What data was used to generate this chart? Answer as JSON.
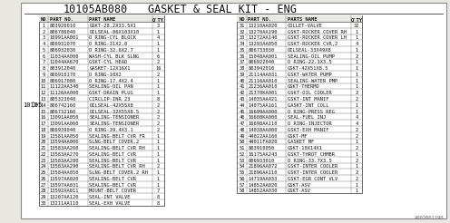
{
  "title_left": "10105AB080",
  "title_right": "GASKET & SEAL KIT - ENG",
  "background_color": "#e8e8e0",
  "table_bg": "#ffffff",
  "label_10105": "10105",
  "watermark": "A002001190",
  "left_table": {
    "headers": [
      "NO",
      "PART NO.",
      "PART NAME",
      "Q'TY"
    ],
    "rows": [
      [
        "1",
        "803926010",
        "GSKT-28.2X33.5X1",
        "3"
      ],
      [
        "2",
        "806786040",
        "OILSEAL-86X103X10",
        "1"
      ],
      [
        "3",
        "10991AA001",
        "O RING-CYL BLOCK",
        "4"
      ],
      [
        "4",
        "806931070",
        "O RING-31X2.0",
        "1"
      ],
      [
        "5",
        "806932030",
        "O RING-32.6X2.7",
        "1"
      ],
      [
        "6",
        "11034AA000",
        "WASH-CYL BLK SLNG",
        "6"
      ],
      [
        "7",
        "11044AA670",
        "GSKT-CYL HEAD",
        "2"
      ],
      [
        "8",
        "803912040",
        "GASKET-12X16X1",
        "16"
      ],
      [
        "9",
        "806910170",
        "O RING-10X2",
        "2"
      ],
      [
        "10",
        "806917080",
        "O RING-17.4X2.4",
        "1"
      ],
      [
        "11",
        "11122AA340",
        "SEALING-OIL PAN",
        "1"
      ],
      [
        "12",
        "11126AA000",
        "GSKT-DRAIN PLUG",
        "1"
      ],
      [
        "13",
        "805323040",
        "CIRCLIP-INR 23",
        "8"
      ],
      [
        "14",
        "806742160",
        "OILSEAL-42X55X8",
        "2"
      ],
      [
        "15",
        "806732160",
        "OILSEAL-32X55X8.5",
        "2"
      ],
      [
        "16",
        "13091AA050",
        "SEALING-TENSIONER",
        "2"
      ],
      [
        "17",
        "13091AA060",
        "SEALING-TENSIONER",
        "2"
      ],
      [
        "18",
        "806939040",
        "O RING-39.4X3.1",
        "2"
      ],
      [
        "19",
        "13581AA050",
        "SEALING-BELT CVR FR",
        "1"
      ],
      [
        "20",
        "13594AA000",
        "SLNG-BELT COVER.2",
        "1"
      ],
      [
        "21",
        "13583AA260",
        "SEALING-BELT CVR RH",
        "1"
      ],
      [
        "22",
        "13583AA270",
        "SEALING-BELT CVR",
        "1"
      ],
      [
        "23",
        "13583AA280",
        "SEALING-BELT CVR",
        "1"
      ],
      [
        "24",
        "13583AA290",
        "SEALING-BELT CVR RH",
        "2"
      ],
      [
        "25",
        "13584AA050",
        "SLNG-BELT COVER.2 RH",
        "1"
      ],
      [
        "26",
        "13597AA020",
        "SEALING-BELT CVR",
        "1"
      ],
      [
        "27",
        "13597AA031",
        "SEALING-BELT CVR",
        "1"
      ],
      [
        "28",
        "13592AA011",
        "MOUNT-BELT COVER",
        "7"
      ],
      [
        "29",
        "13207AA120",
        "SEAL-INT VALVE",
        "8"
      ],
      [
        "30",
        "13211AA110",
        "SEAL-EXH VALVE",
        "8"
      ]
    ]
  },
  "right_table": {
    "headers": [
      "NO",
      "PART NO.",
      "PARTS NAME",
      "Q'TY"
    ],
    "rows": [
      [
        "31",
        "13210AA020",
        "COLLET-VALVE",
        "32"
      ],
      [
        "32",
        "13270AA190",
        "GSKT-ROCKER COVER RH",
        "1"
      ],
      [
        "33",
        "13272AA140",
        "GSKT-ROCKER COVER LH",
        "1"
      ],
      [
        "34",
        "13293AA050",
        "GSKT-ROCKER CVR,2",
        "4"
      ],
      [
        "35",
        "806733030",
        "OILSEAL-33X49X8",
        "1"
      ],
      [
        "36",
        "15048AA001",
        "SEALING-OIL PUMP",
        "2"
      ],
      [
        "37",
        "806922040",
        "O RING-22.1X3.5",
        "1"
      ],
      [
        "38",
        "803942010",
        "GSKT-42X51X8.5",
        "1"
      ],
      [
        "39",
        "21114AA031",
        "GSKT-WATER PUMP",
        "1"
      ],
      [
        "40",
        "21116AA010",
        "SEALING-WATER PMP",
        "1"
      ],
      [
        "41",
        "21236AA010",
        "GSKT-THERMO",
        "1"
      ],
      [
        "42",
        "21370KA001",
        "GSKT-OIL COOLER",
        "2"
      ],
      [
        "43",
        "14035AA421",
        "GSKT-INT MANIF",
        "2"
      ],
      [
        "44",
        "14075AA161",
        "GASKT-INT COLL",
        "1"
      ],
      [
        "45",
        "16699AA000",
        "O RING-PRESS REG",
        "1"
      ],
      [
        "46",
        "16608KA000",
        "SEAL-FUEL INJ",
        "4"
      ],
      [
        "47",
        "16698AA110",
        "O RING-INJECTOR",
        "4"
      ],
      [
        "48",
        "14038AA000",
        "GSKT-EXH MANIF",
        "2"
      ],
      [
        "49",
        "44022AA160",
        "GSKT-MF",
        "2"
      ],
      [
        "50",
        "44011FA020",
        "GASKET MF",
        "1"
      ],
      [
        "51",
        "803910050",
        "GSKT-10X14X1",
        "2"
      ],
      [
        "52",
        "16175AA243",
        "GSKT-THROT CHMBR",
        "1"
      ],
      [
        "53",
        "806933010",
        "O RING-33.7X3.5",
        "2"
      ],
      [
        "54",
        "21896AA072",
        "GSKT-INTER COOLER",
        "1"
      ],
      [
        "55",
        "21896AA110",
        "GSKT-INTER COOLER",
        "2"
      ],
      [
        "56",
        "14719AA033",
        "GSKT-EGR CONT VLV",
        "2"
      ],
      [
        "57",
        "14852AA020",
        "GSKT-ASV",
        "1"
      ],
      [
        "58",
        "14852AA030",
        "GSKT-ASV",
        "1"
      ]
    ]
  }
}
